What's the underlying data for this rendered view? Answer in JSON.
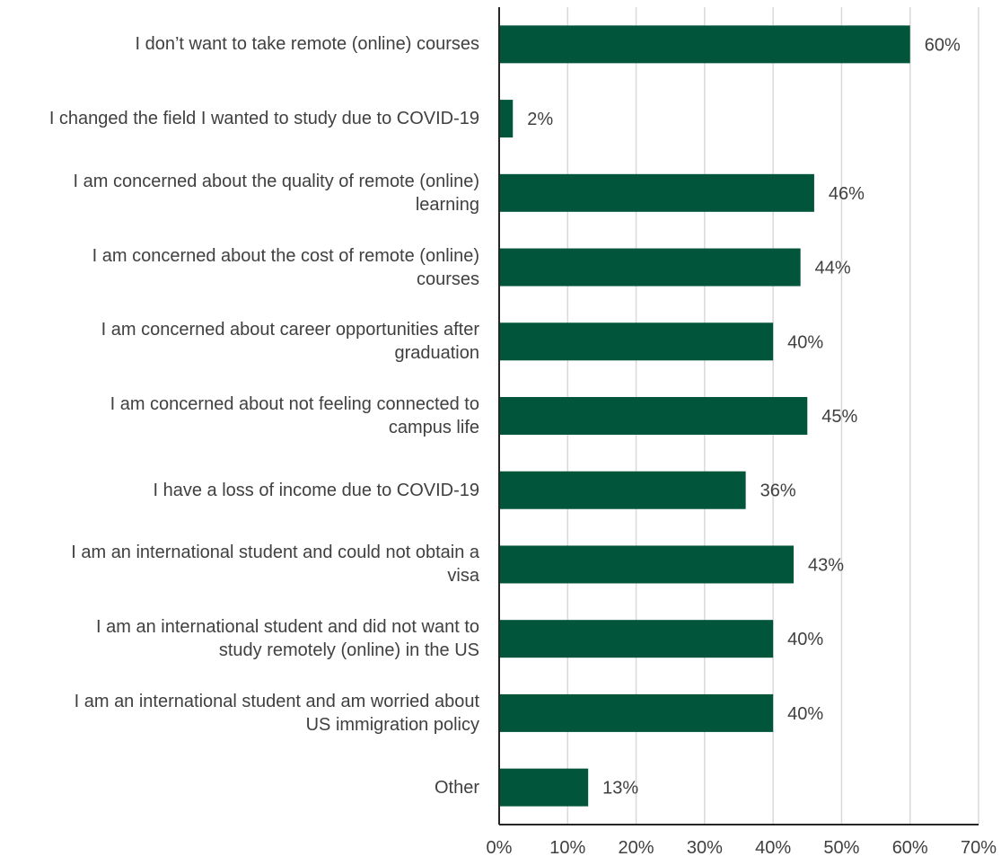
{
  "chart_data": {
    "type": "bar",
    "orientation": "horizontal",
    "categories": [
      "I don’t want to take remote (online) courses",
      "I changed the field I wanted to study due to COVID-19",
      "I am concerned about the quality of remote (online) learning",
      "I am concerned about the cost of remote (online) courses",
      "I am concerned about career opportunities after graduation",
      "I am concerned about not feeling connected to campus life",
      "I have a loss of income due to COVID-19",
      "I am an international student and could not obtain a visa",
      "I am an international student and did not want to study remotely (online) in the US",
      "I am an international student and am worried about US immigration policy",
      "Other"
    ],
    "label_lines": [
      [
        "I don’t want to take remote (online) courses"
      ],
      [
        "I changed the field I wanted to study due to COVID-19"
      ],
      [
        "I am concerned about the quality of remote (online)",
        "learning"
      ],
      [
        "I am concerned about the cost of remote (online)",
        "courses"
      ],
      [
        "I am concerned about career opportunities after",
        "graduation"
      ],
      [
        "I am concerned about not feeling connected to",
        "campus life"
      ],
      [
        "I have a loss of income due to COVID-19"
      ],
      [
        "I am an international student and could not obtain a",
        "visa"
      ],
      [
        "I am an international student and did not want to",
        "study remotely (online) in the US"
      ],
      [
        "I am an international student and am worried about",
        "US immigration policy"
      ],
      [
        "Other"
      ]
    ],
    "values": [
      60,
      2,
      46,
      44,
      40,
      45,
      36,
      43,
      40,
      40,
      13
    ],
    "value_labels": [
      "60%",
      "2%",
      "46%",
      "44%",
      "40%",
      "45%",
      "36%",
      "43%",
      "40%",
      "40%",
      "13%"
    ],
    "xlim": [
      0,
      70
    ],
    "xticks": [
      "0%",
      "10%",
      "20%",
      "30%",
      "40%",
      "50%",
      "60%",
      "70%"
    ],
    "grid": "vertical",
    "bar_color": "#00553A",
    "gridline_color": "#D9D9D9",
    "axis_color": "#262626",
    "text_color": "#404040"
  }
}
